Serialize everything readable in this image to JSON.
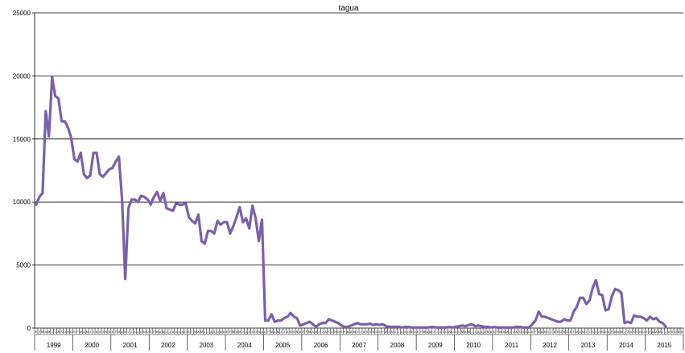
{
  "chart_data": {
    "type": "line",
    "title": "tagua",
    "xlabel": "",
    "ylabel": "",
    "ylim": [
      0,
      25000
    ],
    "yticks": [
      0,
      5000,
      10000,
      15000,
      20000,
      25000
    ],
    "ytick_labels": [
      "0",
      "5000",
      "10000",
      "15000",
      "20000",
      "25000"
    ],
    "grid": true,
    "legend": "none",
    "line_color": "#7b5fa8",
    "year_labels": [
      "1999",
      "2000",
      "2001",
      "2002",
      "2003",
      "2004",
      "2005",
      "2006",
      "2007",
      "2008",
      "2009",
      "2010",
      "2011",
      "2012",
      "2013",
      "2014",
      "2015"
    ],
    "month_tick_labels": [
      "E",
      "F",
      "M",
      "A",
      "M",
      "J",
      "J",
      "A",
      "S",
      "O",
      "N",
      "D"
    ],
    "x_start": "1999-01",
    "series": [
      {
        "values": [
          9800,
          10400,
          10700,
          17200,
          15200,
          19900,
          18400,
          18200,
          16400,
          16400,
          15900,
          15100,
          13400,
          13200,
          13900,
          12200,
          11900,
          12100,
          13900,
          13900,
          12200,
          12000,
          12300,
          12600,
          12700,
          13200,
          13600,
          10200,
          3900,
          9500,
          10200,
          10200,
          10000,
          10500,
          10400,
          10200,
          9800,
          10400,
          10800,
          10100,
          10700,
          9500,
          9400,
          9300,
          9900,
          9800,
          9800,
          9900,
          8800,
          8500,
          8300,
          9000,
          6900,
          6700,
          7700,
          7700,
          7500,
          8500,
          8200,
          8400,
          8400,
          7500,
          8100,
          8800,
          9600,
          8400,
          8700,
          7900,
          9700,
          8700,
          6900,
          8600,
          600,
          600,
          1100,
          500,
          600,
          600,
          800,
          900,
          1200,
          900,
          800,
          200,
          300,
          400,
          500,
          300,
          100,
          300,
          400,
          400,
          700,
          600,
          500,
          400,
          200,
          100,
          100,
          200,
          300,
          400,
          300,
          300,
          300,
          350,
          250,
          300,
          250,
          300,
          150,
          100,
          100,
          100,
          100,
          50,
          100,
          100,
          50,
          50,
          50,
          50,
          50,
          50,
          80,
          80,
          50,
          50,
          50,
          50,
          80,
          50,
          100,
          150,
          200,
          150,
          250,
          300,
          150,
          200,
          150,
          100,
          100,
          50,
          80,
          50,
          50,
          50,
          50,
          50,
          50,
          100,
          100,
          50,
          50,
          50,
          300,
          600,
          1300,
          900,
          900,
          800,
          700,
          600,
          500,
          500,
          700,
          600,
          600,
          1300,
          1700,
          2400,
          2400,
          1900,
          2200,
          3200,
          3800,
          2700,
          2600,
          1400,
          1500,
          2500,
          3100,
          3000,
          2800,
          400,
          500,
          400,
          1000,
          900,
          900,
          800,
          600,
          900,
          700,
          800,
          500,
          400,
          100
        ]
      }
    ]
  }
}
